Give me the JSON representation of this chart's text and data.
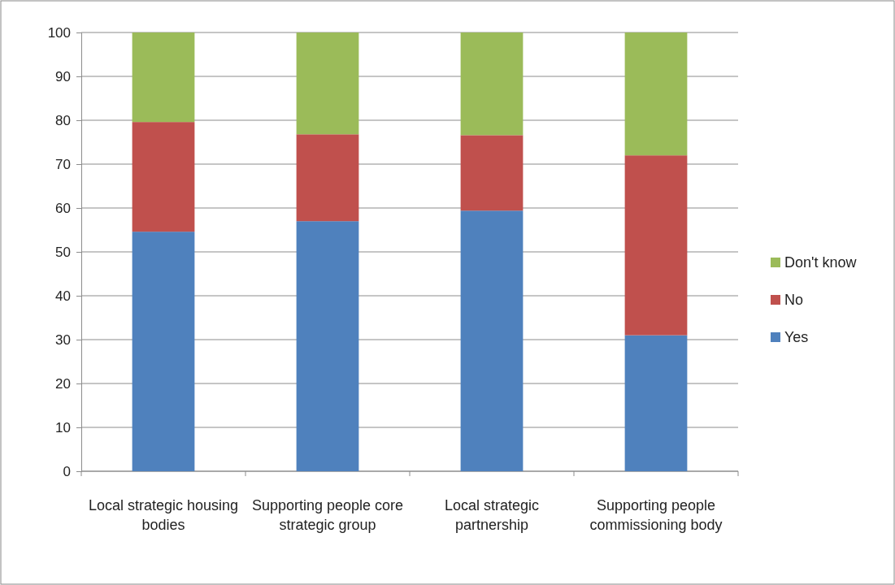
{
  "chart_data": {
    "type": "bar",
    "stacked": true,
    "categories": [
      "Local strategic housing bodies",
      "Supporting people core strategic group",
      "Local strategic partnership",
      "Supporting people commissioning body"
    ],
    "series": [
      {
        "name": "Yes",
        "color": "#4f81bd",
        "values": [
          54.6,
          57.0,
          59.4,
          31.0
        ]
      },
      {
        "name": "No",
        "color": "#c0504d",
        "values": [
          25.0,
          19.8,
          17.2,
          41.0
        ]
      },
      {
        "name": "Don't know",
        "color": "#9bbb59",
        "values": [
          20.4,
          23.2,
          23.4,
          28.0
        ]
      }
    ],
    "ylim": [
      0,
      100
    ],
    "yticks": [
      0,
      10,
      20,
      30,
      40,
      50,
      60,
      70,
      80,
      90,
      100
    ],
    "grid": "y",
    "legend": "right"
  }
}
